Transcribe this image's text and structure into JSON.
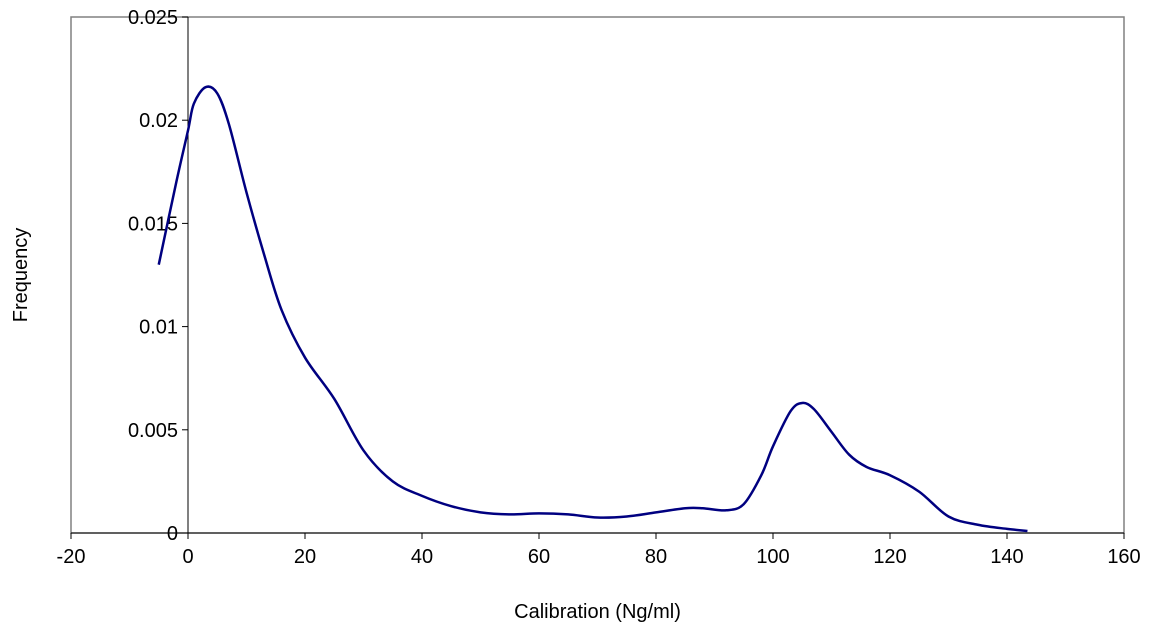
{
  "chart_data": {
    "type": "line",
    "title": "",
    "xlabel": "Calibration (Ng/ml)",
    "ylabel": "Frequency",
    "xlim": [
      -20,
      160
    ],
    "ylim": [
      0,
      0.025
    ],
    "x_ticks": [
      "-20",
      "0",
      "20",
      "40",
      "60",
      "80",
      "100",
      "120",
      "140",
      "160"
    ],
    "y_ticks": [
      "0",
      "0.005",
      "0.01",
      "0.015",
      "0.02",
      "0.025"
    ],
    "grid": false,
    "legend": "none",
    "series": [
      {
        "color": "#000080",
        "x": [
          -5,
          -2,
          0,
          1,
          3,
          5,
          7,
          10,
          13,
          16,
          20,
          25,
          30,
          35,
          40,
          45,
          50,
          55,
          60,
          65,
          70,
          75,
          80,
          85,
          88,
          92,
          95,
          98,
          100,
          103,
          105,
          107,
          110,
          113,
          116,
          120,
          125,
          130,
          135,
          140,
          143.5
        ],
        "y": [
          0.013,
          0.017,
          0.0195,
          0.0208,
          0.0216,
          0.0213,
          0.0198,
          0.0165,
          0.0135,
          0.0108,
          0.0085,
          0.0065,
          0.004,
          0.0025,
          0.0018,
          0.0013,
          0.001,
          0.0009,
          0.00095,
          0.0009,
          0.00075,
          0.0008,
          0.001,
          0.0012,
          0.0012,
          0.0011,
          0.0014,
          0.0028,
          0.0042,
          0.0059,
          0.0063,
          0.006,
          0.0049,
          0.0038,
          0.0032,
          0.0028,
          0.002,
          0.0008,
          0.0004,
          0.0002,
          0.0001
        ]
      }
    ]
  }
}
